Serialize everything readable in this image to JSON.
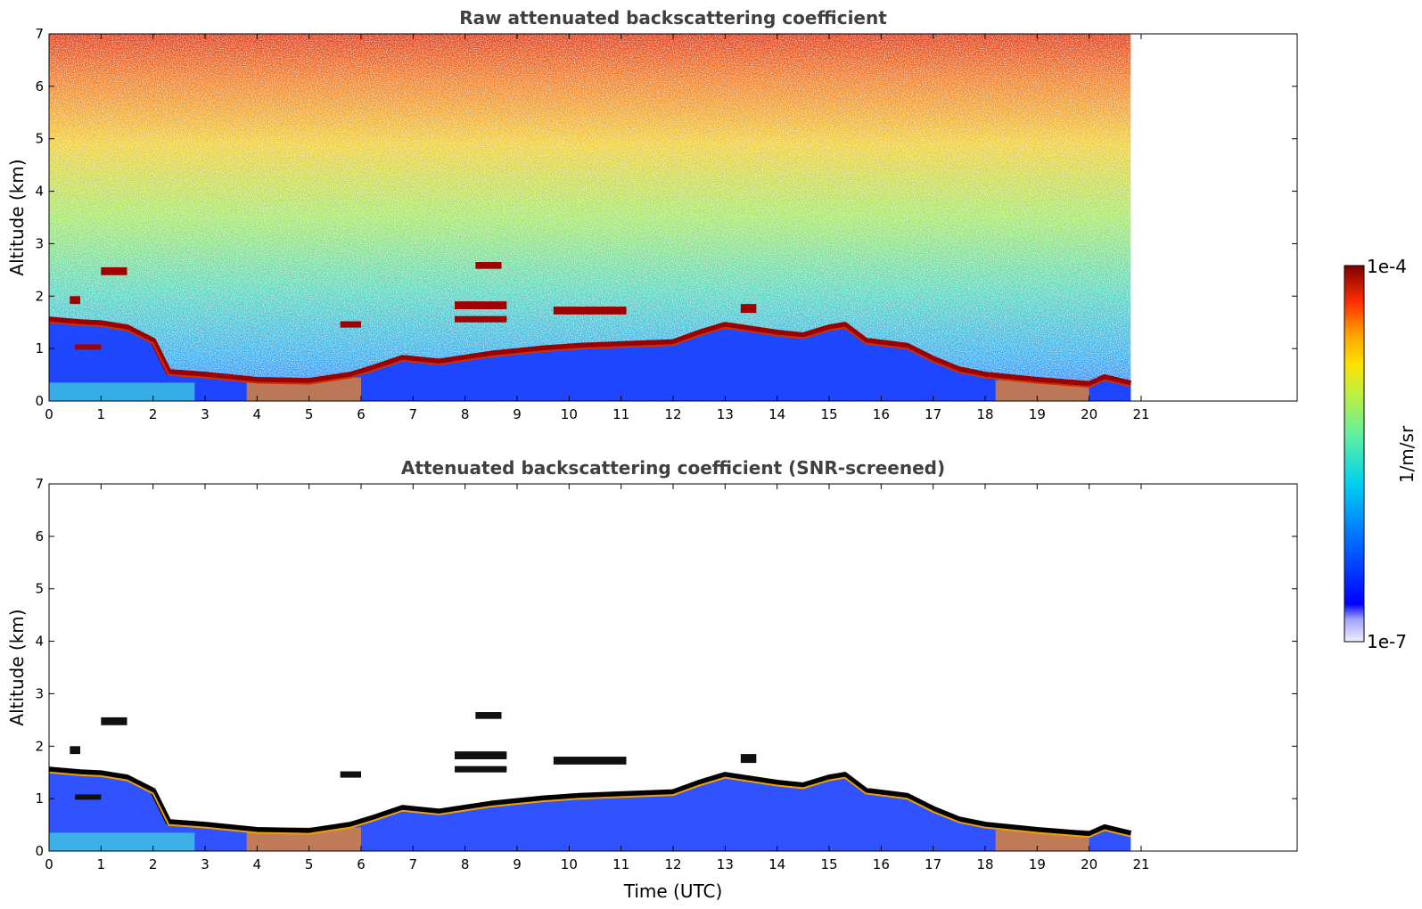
{
  "chart_data": [
    {
      "type": "heatmap",
      "title": "Raw attenuated backscattering coefficient",
      "xlabel": "",
      "ylabel": "Altitude (km)",
      "x_ticks": [
        "0",
        "1",
        "2",
        "3",
        "4",
        "5",
        "6",
        "7",
        "8",
        "9",
        "10",
        "11",
        "12",
        "13",
        "14",
        "15",
        "16",
        "17",
        "18",
        "19",
        "20",
        "21"
      ],
      "y_ticks": [
        "0",
        "1",
        "2",
        "3",
        "4",
        "5",
        "6",
        "7"
      ],
      "xlim": [
        0,
        24
      ],
      "ylim": [
        0,
        7
      ],
      "data_extent_x": [
        0,
        20.8
      ],
      "scale": "log",
      "features": {
        "cloud_base_km": [
          [
            0,
            1.55
          ],
          [
            0.6,
            1.5
          ],
          [
            1.0,
            1.48
          ],
          [
            1.5,
            1.4
          ],
          [
            2.0,
            1.15
          ],
          [
            2.3,
            0.55
          ],
          [
            3.0,
            0.5
          ],
          [
            4.0,
            0.4
          ],
          [
            5.0,
            0.38
          ],
          [
            5.8,
            0.5
          ],
          [
            6.2,
            0.62
          ],
          [
            6.8,
            0.82
          ],
          [
            7.5,
            0.75
          ],
          [
            8.5,
            0.9
          ],
          [
            9.5,
            1.0
          ],
          [
            10.2,
            1.05
          ],
          [
            11.0,
            1.08
          ],
          [
            12.0,
            1.12
          ],
          [
            12.5,
            1.3
          ],
          [
            13.0,
            1.45
          ],
          [
            14.0,
            1.3
          ],
          [
            14.5,
            1.25
          ],
          [
            15.0,
            1.4
          ],
          [
            15.3,
            1.45
          ],
          [
            15.7,
            1.15
          ],
          [
            16.5,
            1.05
          ],
          [
            17.0,
            0.8
          ],
          [
            17.5,
            0.6
          ],
          [
            18.0,
            0.5
          ],
          [
            19.0,
            0.4
          ],
          [
            20.0,
            0.32
          ],
          [
            20.3,
            0.45
          ],
          [
            20.8,
            0.33
          ]
        ],
        "elevated_layers": [
          {
            "x": [
              7.8,
              8.8
            ],
            "y": [
              1.75,
              1.9
            ]
          },
          {
            "x": [
              7.8,
              8.8
            ],
            "y": [
              1.5,
              1.62
            ]
          },
          {
            "x": [
              9.7,
              11.1
            ],
            "y": [
              1.65,
              1.8
            ]
          },
          {
            "x": [
              8.2,
              8.7
            ],
            "y": [
              2.52,
              2.65
            ]
          },
          {
            "x": [
              1.0,
              1.5
            ],
            "y": [
              2.4,
              2.55
            ]
          },
          {
            "x": [
              0.4,
              0.6
            ],
            "y": [
              1.85,
              2.0
            ]
          },
          {
            "x": [
              13.3,
              13.6
            ],
            "y": [
              1.68,
              1.85
            ]
          },
          {
            "x": [
              5.6,
              6.0
            ],
            "y": [
              1.4,
              1.52
            ]
          },
          {
            "x": [
              0.5,
              1.0
            ],
            "y": [
              0.98,
              1.08
            ]
          }
        ]
      }
    },
    {
      "type": "heatmap",
      "title": "Attenuated backscattering coefficient (SNR-screened)",
      "xlabel": "Time (UTC)",
      "ylabel": "Altitude (km)",
      "x_ticks": [
        "0",
        "1",
        "2",
        "3",
        "4",
        "5",
        "6",
        "7",
        "8",
        "9",
        "10",
        "11",
        "12",
        "13",
        "14",
        "15",
        "16",
        "17",
        "18",
        "19",
        "20",
        "21"
      ],
      "y_ticks": [
        "0",
        "1",
        "2",
        "3",
        "4",
        "5",
        "6",
        "7"
      ],
      "xlim": [
        0,
        24
      ],
      "ylim": [
        0,
        7
      ],
      "data_extent_x": [
        0,
        20.8
      ],
      "scale": "log"
    }
  ],
  "colorbar": {
    "label": "1/m/sr",
    "max_label": "1e-4",
    "min_label": "1e-7",
    "range": [
      1e-07,
      0.0001
    ],
    "colors": [
      "#f0f0ff",
      "#c8c8ff",
      "#a0a0ff",
      "#0000ff",
      "#0040ff",
      "#0080ff",
      "#00c0ff",
      "#20e0e0",
      "#60f0a0",
      "#a0f060",
      "#e0f020",
      "#ffe000",
      "#ffa000",
      "#ff6000",
      "#ff2000",
      "#c00000",
      "#800000"
    ]
  }
}
